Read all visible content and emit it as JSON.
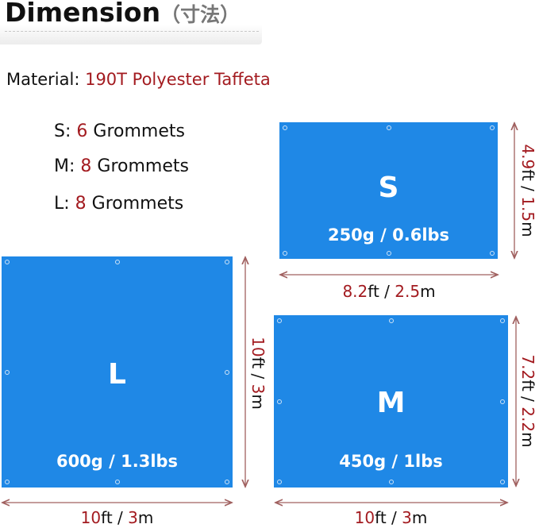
{
  "header": {
    "title": "Dimension",
    "title_jp": "（寸法）"
  },
  "material": {
    "label": "Material:",
    "value": "190T Polyester Taffeta"
  },
  "grommets": [
    {
      "size": "S:",
      "count": "6",
      "text": "Grommets"
    },
    {
      "size": "M:",
      "count": "8",
      "text": "Grommets"
    },
    {
      "size": "L:",
      "count": "8",
      "text": "Grommets"
    }
  ],
  "tarps": {
    "S": {
      "label": "S",
      "weight": "250g / 0.6lbs",
      "width_ft": "8.2",
      "width_m": "2.5",
      "height_ft": "4.9",
      "height_m": "1.5",
      "grommet_count": 6
    },
    "M": {
      "label": "M",
      "weight": "450g / 1lbs",
      "width_ft": "10",
      "width_m": "3",
      "height_ft": "7.2",
      "height_m": "2.2",
      "grommet_count": 8
    },
    "L": {
      "label": "L",
      "weight": "600g / 1.3lbs",
      "width_ft": "10",
      "width_m": "3",
      "height_ft": "10",
      "height_m": "3",
      "grommet_count": 8
    }
  },
  "units": {
    "ft": "ft",
    "sep": " / ",
    "m": "m"
  },
  "colors": {
    "tarp": "#1f88e6",
    "accent_red": "#a31b20",
    "arrow": "#a0605f"
  }
}
